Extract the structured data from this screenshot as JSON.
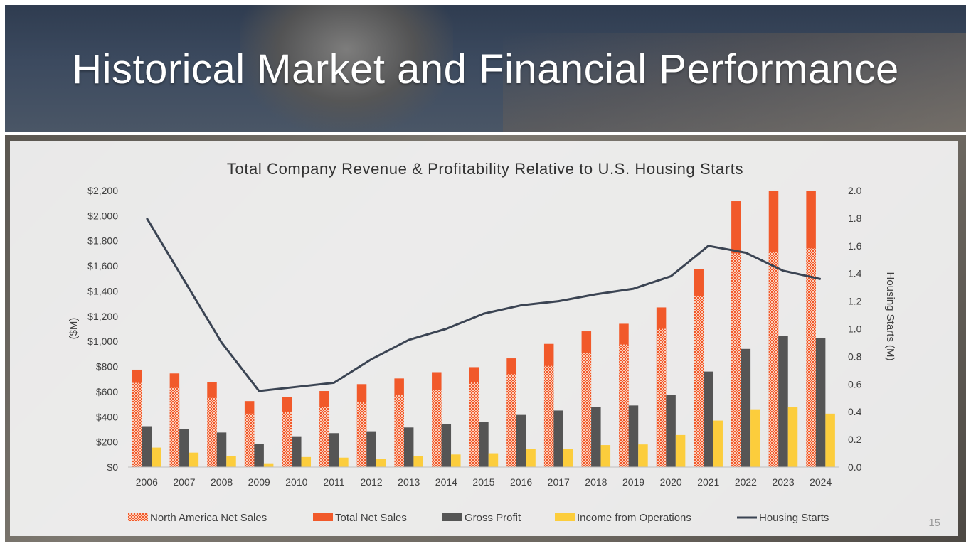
{
  "slide": {
    "title": "Historical Market and Financial Performance",
    "page_number": "15"
  },
  "colors": {
    "north_america": "#f1592a",
    "total": "#f1592a",
    "gross_profit": "#555555",
    "income": "#fccd3c",
    "housing": "#3b4453"
  },
  "chart_data": {
    "type": "bar",
    "title": "Total Company Revenue & Profitability Relative to U.S. Housing Starts",
    "ylabel": "($M)",
    "y2label": "Housing Starts (M)",
    "ylim": [
      0,
      2200
    ],
    "y2lim": [
      0,
      2.0
    ],
    "yticks": [
      "$0",
      "$200",
      "$400",
      "$600",
      "$800",
      "$1,000",
      "$1,200",
      "$1,400",
      "$1,600",
      "$1,800",
      "$2,000",
      "$2,200"
    ],
    "y2ticks": [
      "0.0",
      "0.2",
      "0.4",
      "0.6",
      "0.8",
      "1.0",
      "1.2",
      "1.4",
      "1.6",
      "1.8",
      "2.0"
    ],
    "categories": [
      "2006",
      "2007",
      "2008",
      "2009",
      "2010",
      "2011",
      "2012",
      "2013",
      "2014",
      "2015",
      "2016",
      "2017",
      "2018",
      "2019",
      "2020",
      "2021",
      "2022",
      "2023",
      "2024"
    ],
    "series": [
      {
        "name": "North America Net Sales",
        "type": "bar-overlay",
        "values": [
          670,
          630,
          550,
          425,
          440,
          475,
          520,
          575,
          615,
          675,
          740,
          805,
          910,
          975,
          1100,
          1360,
          1700,
          1710,
          1740
        ]
      },
      {
        "name": "Total Net Sales",
        "type": "bar",
        "values": [
          775,
          745,
          675,
          525,
          555,
          605,
          660,
          705,
          755,
          795,
          865,
          980,
          1080,
          1140,
          1270,
          1575,
          2115,
          2200,
          2200
        ]
      },
      {
        "name": "Gross Profit",
        "type": "bar",
        "values": [
          325,
          300,
          275,
          185,
          245,
          270,
          285,
          315,
          345,
          360,
          415,
          450,
          480,
          490,
          575,
          760,
          940,
          1045,
          1025
        ]
      },
      {
        "name": "Income from Operations",
        "type": "bar",
        "values": [
          155,
          115,
          90,
          30,
          80,
          75,
          65,
          85,
          100,
          110,
          145,
          145,
          175,
          180,
          255,
          370,
          460,
          475,
          425
        ]
      },
      {
        "name": "Housing Starts",
        "type": "line",
        "axis": "secondary",
        "values": [
          1.8,
          1.35,
          0.9,
          0.55,
          0.58,
          0.61,
          0.78,
          0.92,
          1.0,
          1.11,
          1.17,
          1.2,
          1.25,
          1.29,
          1.38,
          1.6,
          1.55,
          1.42,
          1.36
        ]
      }
    ],
    "legend": [
      "North America Net Sales",
      "Total Net Sales",
      "Gross Profit",
      "Income from Operations",
      "Housing Starts"
    ],
    "legend_position": "bottom"
  }
}
